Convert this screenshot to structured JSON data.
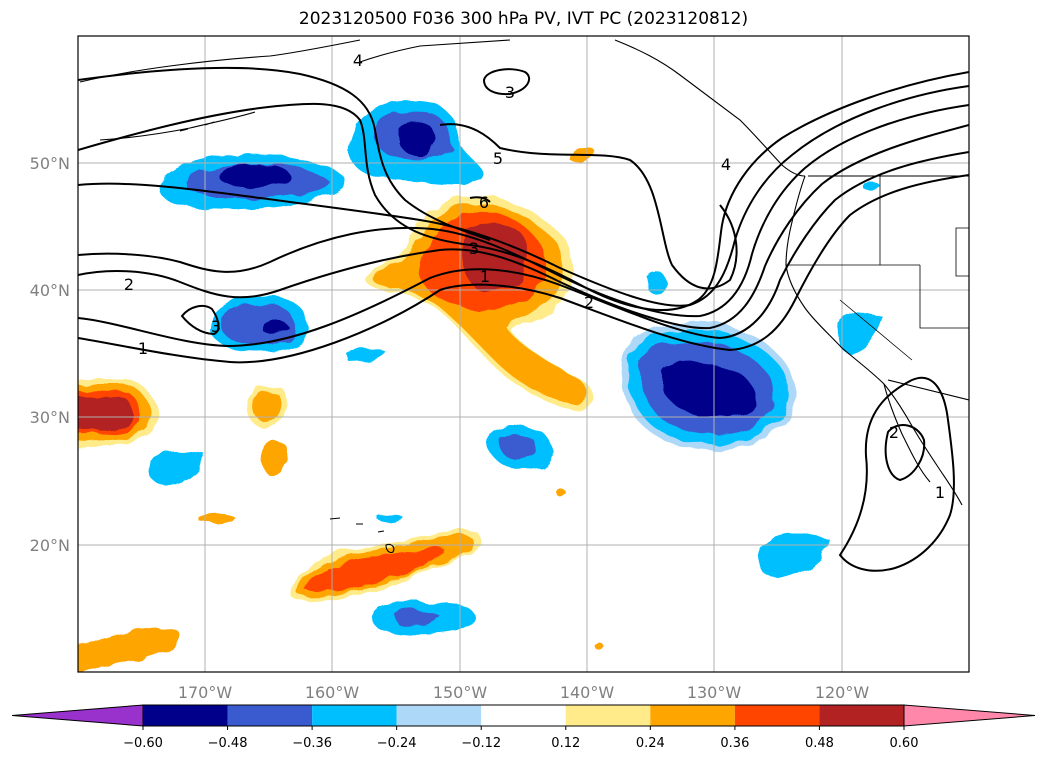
{
  "title": "2023120500 F036 300 hPa PV, IVT PC (2023120812)",
  "chart_data": {
    "type": "filled-contour-map",
    "title": "2023120500 F036 300 hPa PV, IVT PC (2023120812)",
    "projection": "PlateCarree",
    "lon_range": [
      -180,
      -110
    ],
    "lat_range": [
      10,
      60
    ],
    "grid": true,
    "x_ticks": [
      {
        "lon": -170,
        "label": "170°W"
      },
      {
        "lon": -160,
        "label": "160°W"
      },
      {
        "lon": -150,
        "label": "150°W"
      },
      {
        "lon": -140,
        "label": "140°W"
      },
      {
        "lon": -130,
        "label": "130°W"
      },
      {
        "lon": -120,
        "label": "120°W"
      }
    ],
    "y_ticks": [
      {
        "lat": 20,
        "label": "20°N"
      },
      {
        "lat": 30,
        "label": "30°N"
      },
      {
        "lat": 40,
        "label": "40°N"
      },
      {
        "lat": 50,
        "label": "50°N"
      }
    ],
    "colorbar": {
      "orientation": "horizontal",
      "extend": "both",
      "levels": [
        -0.6,
        -0.48,
        -0.36,
        -0.24,
        -0.12,
        0.12,
        0.24,
        0.36,
        0.48,
        0.6
      ],
      "tick_labels": [
        "−0.60",
        "−0.48",
        "−0.36",
        "−0.24",
        "−0.12",
        "0.12",
        "0.24",
        "0.36",
        "0.48",
        "0.60"
      ],
      "colors": [
        "#9932cc",
        "#00008b",
        "#3a5bd0",
        "#00bfff",
        "#add8f8",
        "#ffffff",
        "#ffeb8a",
        "#ffa500",
        "#ff4500",
        "#b22222",
        "#ff88aa"
      ]
    },
    "contour_labels": [
      "1",
      "2",
      "3",
      "4",
      "5",
      "6"
    ],
    "filled_regions": [
      {
        "level": -0.6,
        "color": "#00008b",
        "center": [
          -131,
          32.5
        ]
      },
      {
        "level": -0.6,
        "color": "#00008b",
        "center": [
          -165,
          48.5
        ]
      },
      {
        "level": -0.6,
        "color": "#00008b",
        "center": [
          -153,
          52
        ]
      },
      {
        "level": 0.48,
        "color": "#b22222",
        "center": [
          -148,
          42
        ]
      },
      {
        "level": 0.48,
        "color": "#b22222",
        "center": [
          -178,
          30.5
        ]
      },
      {
        "level": 0.36,
        "color": "#ff4500",
        "center": [
          -153,
          18.5
        ]
      }
    ]
  }
}
